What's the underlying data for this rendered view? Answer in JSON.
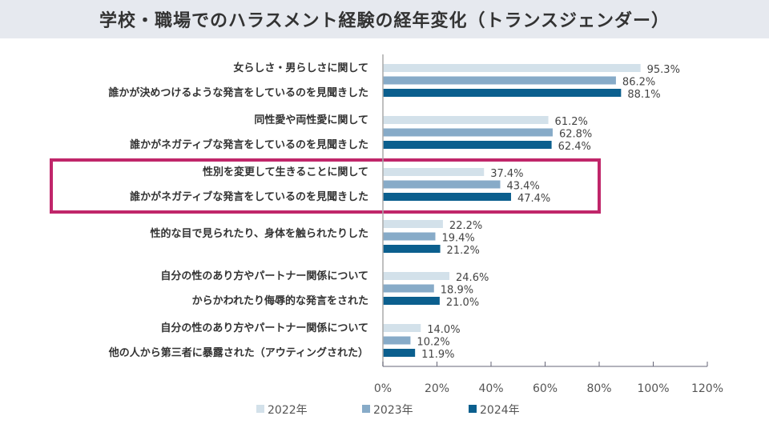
{
  "chart_data": {
    "type": "bar",
    "orientation": "horizontal",
    "title": "学校・職場でのハラスメント経験の経年変化（トランスジェンダー）",
    "categories": [
      [
        "女らしさ・男らしさに関して",
        "誰かが決めつけるような発言をしているのを見聞きした"
      ],
      [
        "同性愛や両性愛に関して",
        "誰かがネガティブな発言をしているのを見聞きした"
      ],
      [
        "性別を変更して生きることに関して",
        "誰かがネガティブな発言をしているのを見聞きした"
      ],
      [
        "性的な目で見られたり、身体を触られたりした"
      ],
      [
        "自分の性のあり方やパートナー関係について",
        "からかわれたり侮辱的な発言をされた"
      ],
      [
        "自分の性のあり方やパートナー関係について",
        "他の人から第三者に暴露された（アウティングされた）"
      ]
    ],
    "series": [
      {
        "name": "2022年",
        "color": "#d3e1ea",
        "values": [
          95.3,
          61.2,
          37.4,
          22.2,
          24.6,
          14.0
        ]
      },
      {
        "name": "2023年",
        "color": "#87abc8",
        "values": [
          86.2,
          62.8,
          43.4,
          19.4,
          18.9,
          10.2
        ]
      },
      {
        "name": "2024年",
        "color": "#0b5f8e",
        "values": [
          88.1,
          62.4,
          47.4,
          21.2,
          21.0,
          11.9
        ]
      }
    ],
    "xlim": [
      0,
      120
    ],
    "xticks": [
      "0%",
      "20%",
      "40%",
      "60%",
      "80%",
      "100%",
      "120%"
    ],
    "grid": false,
    "legend": "bottom",
    "highlight": {
      "category_index": 2,
      "color": "#c0266a"
    }
  }
}
